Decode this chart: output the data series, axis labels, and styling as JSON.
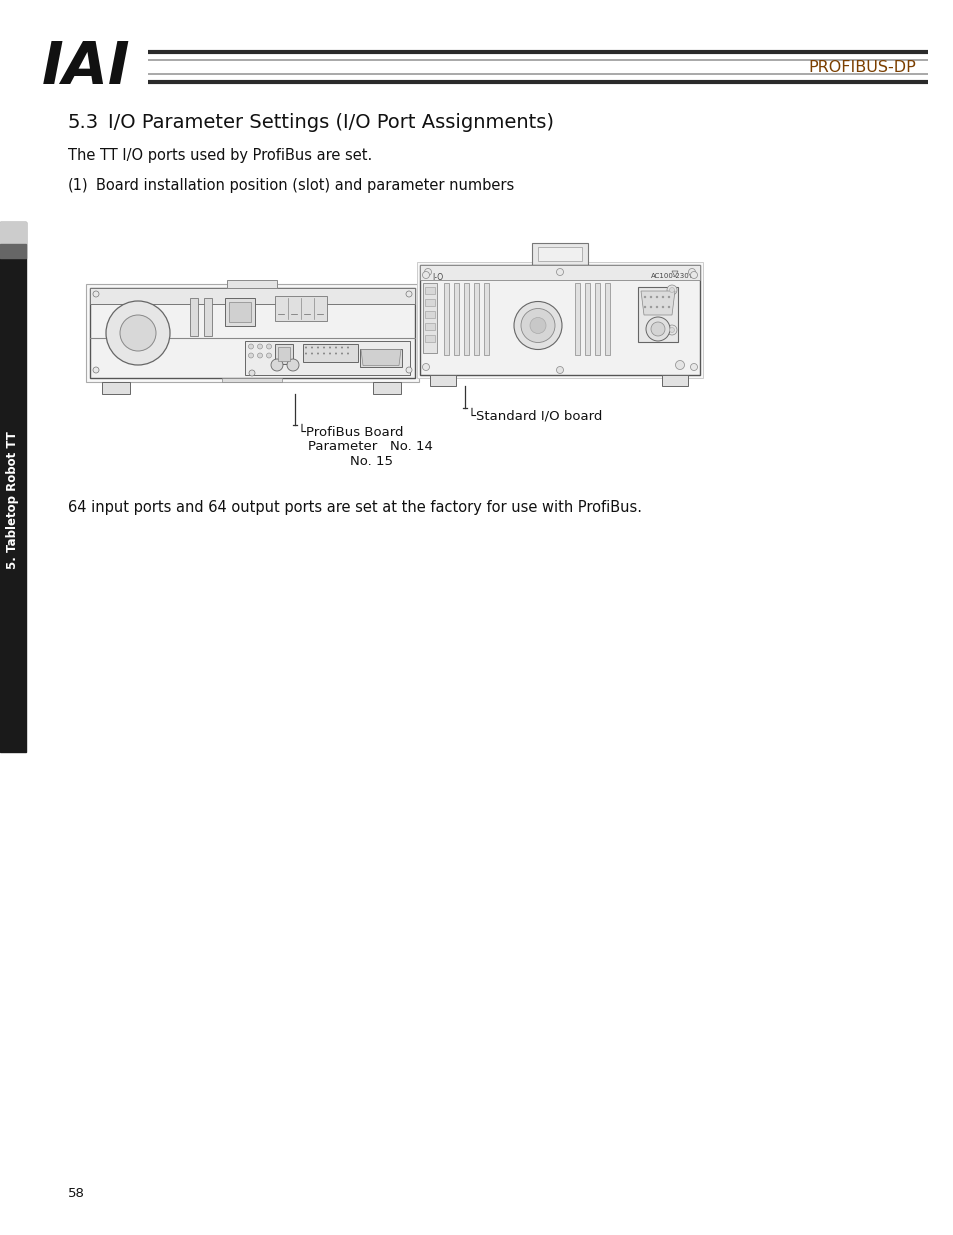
{
  "bg_color": "#ffffff",
  "page_number": "58",
  "header": {
    "iai_text": "IAI",
    "brand_text": "PROFIBUS-DP",
    "brand_color": "#7B3F00",
    "line_color_dark": "#333333",
    "line_color_mid": "#888888"
  },
  "section_title_num": "5.3",
  "section_title_rest": "I/O Parameter Settings (I/O Port Assignments)",
  "body_text1": "The TT I/O ports used by ProfiBus are set.",
  "body_text2_num": "(1)",
  "body_text2_rest": "Board installation position (slot) and parameter numbers",
  "caption_profibus_line1": "└ProfiBus Board",
  "caption_profibus_line2": "Parameter   No. 14",
  "caption_profibus_line3": "No. 15",
  "caption_standard": "└Standard I/O board",
  "footer_text": "64 input ports and 64 output ports are set at the factory for use with ProfiBus.",
  "sidebar_text": "5. Tabletop Robot TT",
  "page_num": "58"
}
